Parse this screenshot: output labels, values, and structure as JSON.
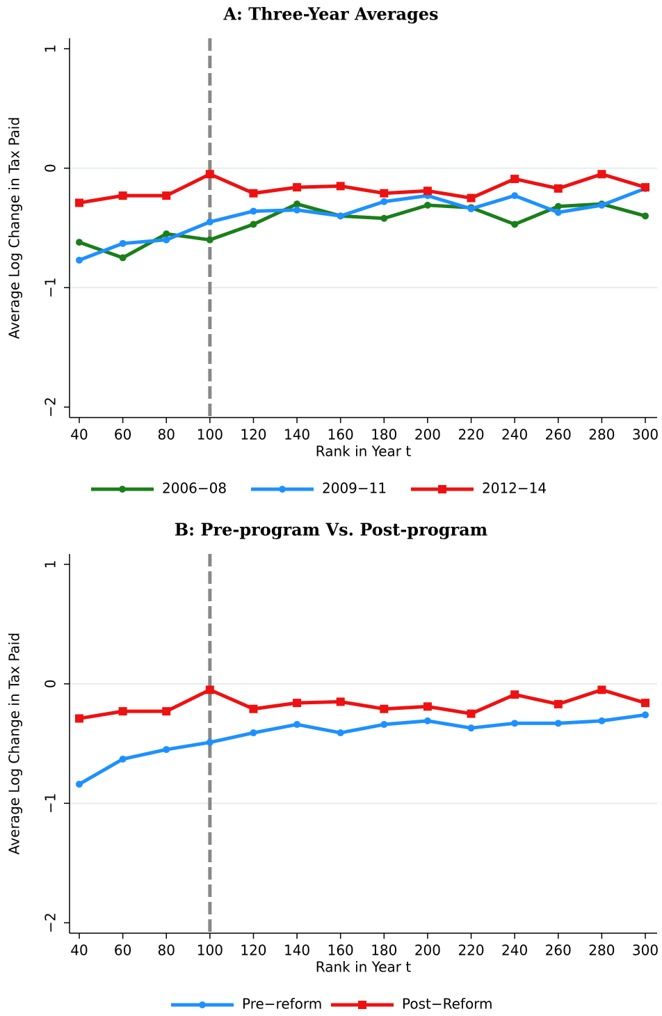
{
  "chart_data": [
    {
      "type": "line",
      "title": "A: Three-Year Averages",
      "x_label": "Rank in Year t",
      "y_label": "Average Log Change in Tax Paid",
      "x": [
        40,
        60,
        80,
        100,
        120,
        140,
        160,
        180,
        200,
        220,
        240,
        260,
        280,
        300
      ],
      "xlim": [
        40,
        300
      ],
      "xticks": [
        40,
        60,
        80,
        100,
        120,
        140,
        160,
        180,
        200,
        220,
        240,
        260,
        280,
        300
      ],
      "ylim": [
        -2,
        1
      ],
      "yticks": [
        {
          "value": -2,
          "label": "−2"
        },
        {
          "value": -1,
          "label": "−1"
        },
        0,
        1
      ],
      "grid": true,
      "vline": 100,
      "legend": "bottom",
      "series": [
        {
          "name": "2006−08",
          "color": "#1a7f1a",
          "marker": "circle",
          "values": [
            -0.62,
            -0.75,
            -0.55,
            -0.6,
            -0.47,
            -0.3,
            -0.4,
            -0.42,
            -0.31,
            -0.33,
            -0.47,
            -0.32,
            -0.3,
            -0.4
          ]
        },
        {
          "name": "2009−11",
          "color": "#1e90ff",
          "marker": "circle",
          "values": [
            -0.77,
            -0.63,
            -0.6,
            -0.45,
            -0.36,
            -0.35,
            -0.4,
            -0.28,
            -0.23,
            -0.34,
            -0.23,
            -0.37,
            -0.31,
            -0.17
          ]
        },
        {
          "name": "2012−14",
          "color": "#ee1111",
          "marker": "square",
          "values": [
            -0.29,
            -0.23,
            -0.23,
            -0.05,
            -0.21,
            -0.16,
            -0.15,
            -0.21,
            -0.19,
            -0.25,
            -0.09,
            -0.17,
            -0.05,
            -0.16
          ]
        }
      ]
    },
    {
      "type": "line",
      "title": "B: Pre-program Vs. Post-program",
      "x_label": "Rank in Year t",
      "y_label": "Average Log Change in Tax Paid",
      "x": [
        40,
        60,
        80,
        100,
        120,
        140,
        160,
        180,
        200,
        220,
        240,
        260,
        280,
        300
      ],
      "xlim": [
        40,
        300
      ],
      "xticks": [
        40,
        60,
        80,
        100,
        120,
        140,
        160,
        180,
        200,
        220,
        240,
        260,
        280,
        300
      ],
      "ylim": [
        -2,
        1
      ],
      "yticks": [
        {
          "value": -2,
          "label": "−2"
        },
        {
          "value": -1,
          "label": "−1"
        },
        0,
        1
      ],
      "grid": true,
      "vline": 100,
      "legend": "bottom",
      "series": [
        {
          "name": "Pre−reform",
          "color": "#1e90ff",
          "marker": "circle",
          "values": [
            -0.84,
            -0.63,
            -0.55,
            -0.49,
            -0.41,
            -0.34,
            -0.41,
            -0.34,
            -0.31,
            -0.37,
            -0.33,
            -0.33,
            -0.31,
            -0.26
          ]
        },
        {
          "name": "Post−Reform",
          "color": "#ee1111",
          "marker": "square",
          "values": [
            -0.29,
            -0.23,
            -0.23,
            -0.05,
            -0.21,
            -0.16,
            -0.15,
            -0.21,
            -0.19,
            -0.25,
            -0.09,
            -0.17,
            -0.05,
            -0.16
          ]
        }
      ]
    }
  ]
}
